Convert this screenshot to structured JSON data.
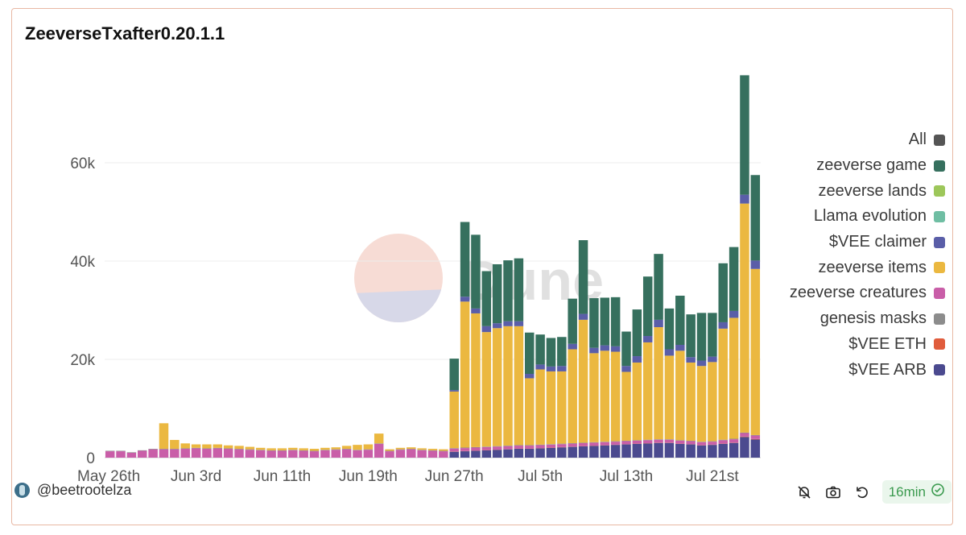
{
  "title": "ZeeverseTxafter0.20.1.1",
  "watermark": "Dune",
  "author": "@beetrootelza",
  "refresh_label": "16min",
  "icons": [
    "bell-off-icon",
    "camera-icon",
    "refresh-icon",
    "check-circle-icon"
  ],
  "legend": [
    {
      "label": "All",
      "color": "#555555"
    },
    {
      "label": "zeeverse game",
      "color": "#36705e"
    },
    {
      "label": "zeeverse lands",
      "color": "#9dc75a"
    },
    {
      "label": "Llama evolution",
      "color": "#6fbea3"
    },
    {
      "label": "$VEE claimer",
      "color": "#5a5ea8"
    },
    {
      "label": "zeeverse items",
      "color": "#ebb840"
    },
    {
      "label": "zeeverse creatures",
      "color": "#c95ea8"
    },
    {
      "label": "genesis masks",
      "color": "#8c8c8c"
    },
    {
      "label": "$VEE ETH",
      "color": "#e05c3c"
    },
    {
      "label": "$VEE ARB",
      "color": "#4b4a8f"
    }
  ],
  "chart_data": {
    "type": "bar",
    "stacked": true,
    "title": "ZeeverseTxafter0.20.1.1",
    "xlabel": "",
    "ylabel": "",
    "ylim": [
      0,
      80000
    ],
    "yticks": [
      0,
      20000,
      40000,
      60000
    ],
    "ytick_labels": [
      "0",
      "20k",
      "40k",
      "60k"
    ],
    "xtick_labels": [
      "May 26th",
      "Jun 3rd",
      "Jun 11th",
      "Jun 19th",
      "Jun 27th",
      "Jul 5th",
      "Jul 13th",
      "Jul 21st"
    ],
    "xtick_indices": [
      0,
      8,
      16,
      24,
      32,
      40,
      48,
      56
    ],
    "categories": [
      "May 26",
      "May 27",
      "May 28",
      "May 29",
      "May 30",
      "May 31",
      "Jun 1",
      "Jun 2",
      "Jun 3",
      "Jun 4",
      "Jun 5",
      "Jun 6",
      "Jun 7",
      "Jun 8",
      "Jun 9",
      "Jun 10",
      "Jun 11",
      "Jun 12",
      "Jun 13",
      "Jun 14",
      "Jun 15",
      "Jun 16",
      "Jun 17",
      "Jun 18",
      "Jun 19",
      "Jun 20",
      "Jun 21",
      "Jun 22",
      "Jun 23",
      "Jun 24",
      "Jun 25",
      "Jun 26",
      "Jun 27",
      "Jun 28",
      "Jun 29",
      "Jun 30",
      "Jul 1",
      "Jul 2",
      "Jul 3",
      "Jul 4",
      "Jul 5",
      "Jul 6",
      "Jul 7",
      "Jul 8",
      "Jul 9",
      "Jul 10",
      "Jul 11",
      "Jul 12",
      "Jul 13",
      "Jul 14",
      "Jul 15",
      "Jul 16",
      "Jul 17",
      "Jul 18",
      "Jul 19",
      "Jul 20",
      "Jul 21",
      "Jul 22",
      "Jul 23",
      "Jul 24",
      "Jul 25"
    ],
    "series": [
      {
        "name": "$VEE ARB",
        "color": "#4b4a8f",
        "values": [
          0,
          0,
          0,
          0,
          0,
          0,
          0,
          0,
          0,
          0,
          0,
          0,
          0,
          0,
          0,
          0,
          0,
          0,
          0,
          0,
          0,
          0,
          0,
          0,
          0,
          0,
          0,
          0,
          0,
          0,
          0,
          0,
          1200,
          1300,
          1400,
          1500,
          1600,
          1700,
          1800,
          1800,
          1900,
          2000,
          2100,
          2200,
          2300,
          2400,
          2500,
          2600,
          2700,
          2800,
          2900,
          3000,
          3000,
          2800,
          2700,
          2500,
          2600,
          2800,
          3000,
          4200,
          3700
        ]
      },
      {
        "name": "$VEE ETH",
        "color": "#e05c3c",
        "values": [
          0,
          0,
          0,
          0,
          0,
          0,
          0,
          0,
          0,
          0,
          0,
          0,
          0,
          0,
          0,
          0,
          0,
          0,
          0,
          0,
          0,
          0,
          0,
          0,
          0,
          0,
          0,
          0,
          0,
          0,
          0,
          0,
          50,
          50,
          50,
          50,
          50,
          50,
          50,
          50,
          50,
          50,
          50,
          50,
          50,
          50,
          50,
          50,
          50,
          50,
          50,
          50,
          50,
          50,
          50,
          50,
          50,
          50,
          50,
          100,
          100
        ]
      },
      {
        "name": "zeeverse creatures",
        "color": "#c95ea8",
        "values": [
          1300,
          1300,
          1000,
          1400,
          1700,
          1700,
          1700,
          1800,
          1900,
          1800,
          1900,
          1800,
          1700,
          1600,
          1500,
          1400,
          1400,
          1500,
          1400,
          1300,
          1500,
          1600,
          1700,
          1500,
          1600,
          2800,
          1300,
          1600,
          1700,
          1500,
          1400,
          1300,
          600,
          600,
          600,
          600,
          600,
          600,
          600,
          600,
          600,
          600,
          600,
          600,
          600,
          600,
          600,
          600,
          600,
          600,
          600,
          600,
          600,
          600,
          600,
          600,
          600,
          700,
          700,
          700,
          700
        ]
      },
      {
        "name": "genesis masks",
        "color": "#8c8c8c",
        "values": [
          100,
          100,
          100,
          100,
          100,
          100,
          100,
          100,
          100,
          100,
          100,
          100,
          100,
          100,
          100,
          100,
          100,
          100,
          100,
          100,
          100,
          100,
          100,
          100,
          100,
          100,
          100,
          100,
          100,
          100,
          100,
          100,
          100,
          100,
          100,
          100,
          100,
          100,
          100,
          100,
          100,
          100,
          100,
          100,
          100,
          100,
          100,
          100,
          100,
          100,
          100,
          100,
          100,
          100,
          100,
          100,
          100,
          100,
          100,
          100,
          100
        ]
      },
      {
        "name": "zeeverse items",
        "color": "#ebb840",
        "values": [
          0,
          0,
          0,
          0,
          0,
          5200,
          1800,
          1000,
          700,
          800,
          700,
          600,
          600,
          500,
          400,
          400,
          400,
          400,
          400,
          400,
          400,
          400,
          600,
          1000,
          1000,
          2000,
          300,
          300,
          300,
          300,
          300,
          300,
          11500,
          29700,
          27200,
          23300,
          24000,
          24300,
          24200,
          13600,
          15300,
          14800,
          14700,
          19100,
          25000,
          18100,
          18500,
          18200,
          14000,
          15800,
          19800,
          22800,
          17000,
          18200,
          15900,
          15400,
          16100,
          22600,
          24600,
          46600,
          33800
        ]
      },
      {
        "name": "$VEE claimer",
        "color": "#5a5ea8",
        "values": [
          0,
          0,
          0,
          0,
          0,
          0,
          0,
          0,
          0,
          0,
          0,
          0,
          0,
          0,
          0,
          0,
          0,
          0,
          0,
          0,
          0,
          0,
          0,
          0,
          0,
          0,
          0,
          0,
          0,
          0,
          0,
          0,
          300,
          1000,
          1000,
          1200,
          1000,
          1000,
          1000,
          900,
          1000,
          1000,
          1100,
          1100,
          1200,
          1100,
          1100,
          1100,
          1200,
          1300,
          1300,
          1500,
          1300,
          1200,
          1100,
          1100,
          1100,
          1300,
          1400,
          1800,
          1700
        ]
      },
      {
        "name": "zeeverse game",
        "color": "#36705e",
        "values": [
          0,
          0,
          0,
          0,
          0,
          0,
          0,
          0,
          0,
          0,
          0,
          0,
          0,
          0,
          0,
          0,
          0,
          0,
          0,
          0,
          0,
          0,
          0,
          0,
          0,
          0,
          0,
          0,
          0,
          0,
          0,
          0,
          6400,
          15200,
          15000,
          11200,
          12000,
          12400,
          12800,
          8400,
          6100,
          5800,
          5900,
          9200,
          15000,
          10100,
          9700,
          10000,
          7000,
          9500,
          12100,
          13400,
          8300,
          10000,
          8700,
          9700,
          8900,
          12000,
          13000,
          24300,
          17400
        ]
      },
      {
        "name": "zeeverse lands",
        "color": "#9dc75a",
        "values": [
          0,
          0,
          0,
          0,
          0,
          0,
          0,
          0,
          0,
          0,
          0,
          0,
          0,
          0,
          0,
          0,
          0,
          0,
          0,
          0,
          0,
          0,
          0,
          0,
          0,
          0,
          0,
          0,
          0,
          0,
          0,
          0,
          0,
          0,
          0,
          0,
          0,
          0,
          0,
          0,
          0,
          0,
          0,
          0,
          0,
          0,
          0,
          0,
          0,
          0,
          0,
          0,
          0,
          0,
          0,
          0,
          0,
          0,
          0,
          0,
          0
        ]
      },
      {
        "name": "Llama evolution",
        "color": "#6fbea3",
        "values": [
          0,
          0,
          0,
          0,
          0,
          0,
          0,
          0,
          0,
          0,
          0,
          0,
          0,
          0,
          0,
          0,
          0,
          0,
          0,
          0,
          0,
          0,
          0,
          0,
          0,
          0,
          0,
          0,
          0,
          0,
          0,
          0,
          0,
          0,
          0,
          0,
          0,
          0,
          0,
          0,
          0,
          0,
          0,
          0,
          0,
          0,
          0,
          0,
          0,
          0,
          0,
          0,
          0,
          0,
          0,
          0,
          0,
          0,
          0,
          0,
          0
        ]
      }
    ],
    "grid": true,
    "legend_position": "right"
  }
}
